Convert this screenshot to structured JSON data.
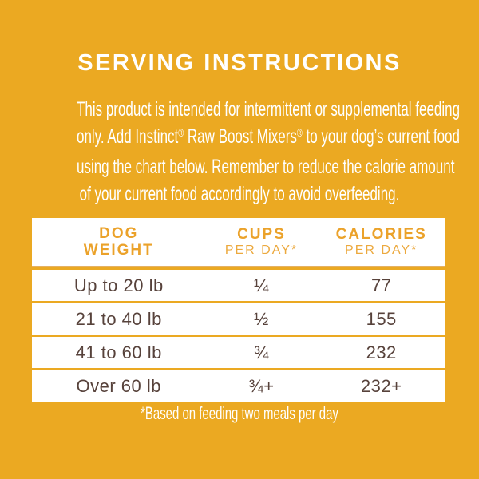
{
  "colors": {
    "background": "#EBA922",
    "table_background": "#FFFFFF",
    "header_text": "#EBA22A",
    "row_text": "#57423B",
    "separator": "#E5B164",
    "body_text": "#FFFFFF"
  },
  "title": "SERVING INSTRUCTIONS",
  "intro": {
    "line1": "This product is intended for intermittent or supplemental feeding",
    "line2": {
      "a": "only. Add Instinct",
      "reg1": "®",
      "b": " Raw Boost Mixers",
      "reg2": "®",
      "c": " to your dog’s current food"
    },
    "line3": "using the chart below. Remember to reduce the calorie amount",
    "line4": "of your current food accordingly to avoid overfeeding."
  },
  "table": {
    "headers": [
      {
        "line1": "DOG",
        "line2": "WEIGHT",
        "sub": ""
      },
      {
        "line1": "CUPS",
        "sub": "PER DAY*"
      },
      {
        "line1": "CALORIES",
        "sub": "PER DAY*"
      }
    ],
    "rows": [
      {
        "weight": "Up to 20 lb",
        "cups": "¼",
        "calories": "77"
      },
      {
        "weight": "21 to 40 lb",
        "cups": "½",
        "calories": "155"
      },
      {
        "weight": "41 to 60 lb",
        "cups": "¾",
        "calories": "232"
      },
      {
        "weight": "Over 60 lb",
        "cups": "¾+",
        "calories": "232+"
      }
    ]
  },
  "footnote": "*Based on feeding two meals per day",
  "chart_data": {
    "type": "table",
    "title": "SERVING INSTRUCTIONS",
    "columns": [
      "DOG WEIGHT",
      "CUPS PER DAY*",
      "CALORIES PER DAY*"
    ],
    "rows": [
      [
        "Up to 20 lb",
        "¼",
        "77"
      ],
      [
        "21 to 40 lb",
        "½",
        "155"
      ],
      [
        "41 to 60 lb",
        "¾",
        "232"
      ],
      [
        "Over 60 lb",
        "¾+",
        "232+"
      ]
    ],
    "footnote": "*Based on feeding two meals per day"
  }
}
